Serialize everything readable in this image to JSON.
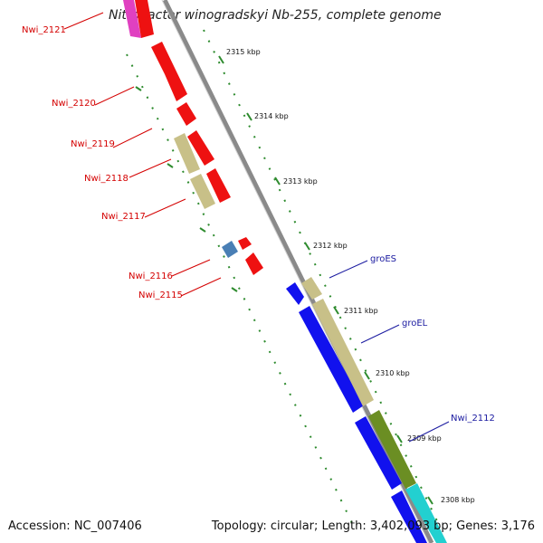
{
  "title": "Nitrobacter winogradskyi Nb-255, complete genome",
  "footer": {
    "accession": "Accession: NC_007406",
    "summary": "Topology: circular; Length: 3,402,093 bp; Genes: 3,176"
  },
  "colors": {
    "backbone": "#8a8a8a",
    "tick_dots": "#2e8b2e",
    "left_label": "#d40000",
    "right_label": "#1a1aa0",
    "gene_red": "#ee1111",
    "gene_magenta": "#e040c0",
    "gene_khaki": "#c8c088",
    "gene_steel": "#4a7fb5",
    "gene_blue": "#1111ee",
    "gene_olive": "#6b8e23",
    "gene_cyan": "#22d0d0"
  },
  "ticks": [
    "2315 kbp",
    "2314 kbp",
    "2313 kbp",
    "2312 kbp",
    "2311 kbp",
    "2310 kbp",
    "2309 kbp",
    "2308 kbp"
  ],
  "left_genes": [
    "Nwi_2121",
    "Nwi_2120",
    "Nwi_2119",
    "Nwi_2118",
    "Nwi_2117",
    "Nwi_2116",
    "Nwi_2115"
  ],
  "right_genes": [
    "groES",
    "groEL",
    "Nwi_2112"
  ]
}
